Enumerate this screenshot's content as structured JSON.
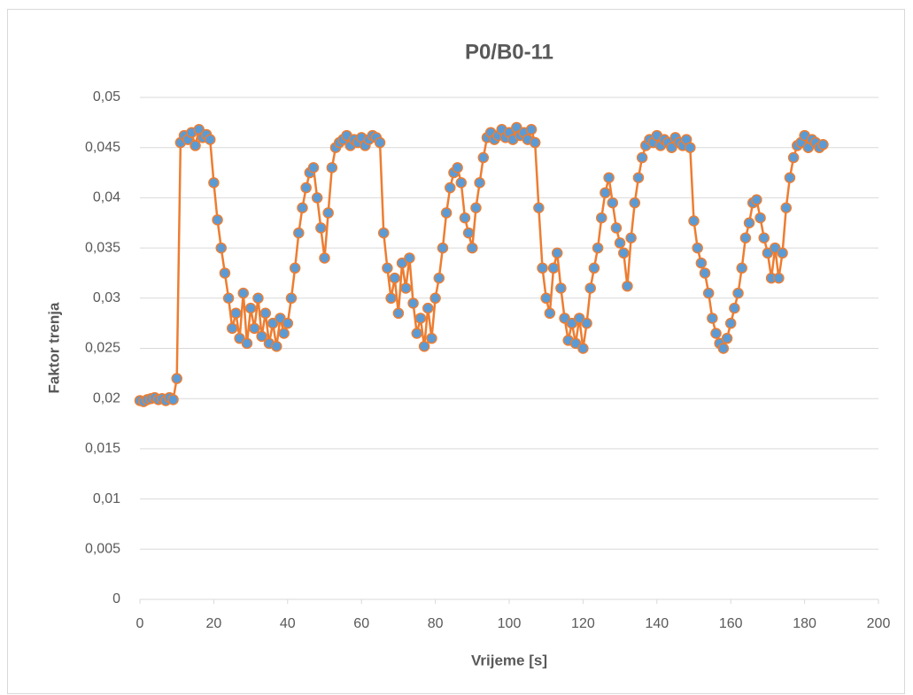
{
  "chart_data": {
    "type": "line",
    "title": "P0/B0-11",
    "x_label": "Vrijeme [s]",
    "y_label": "Faktor trenja",
    "color": "#ed7d31",
    "marker_color": "#5b9bd5",
    "grid": true,
    "xlim": [
      0,
      200
    ],
    "xticks": [
      0,
      20,
      40,
      60,
      80,
      100,
      120,
      140,
      160,
      180,
      200
    ],
    "ylim": [
      0,
      0.05
    ],
    "yticks": [
      0,
      {
        "value": 0.005,
        "label": "0,005"
      },
      {
        "value": 0.01,
        "label": "0,01"
      },
      {
        "value": 0.015,
        "label": "0,015"
      },
      {
        "value": 0.02,
        "label": "0,02"
      },
      {
        "value": 0.025,
        "label": "0,025"
      },
      {
        "value": 0.03,
        "label": "0,03"
      },
      {
        "value": 0.035,
        "label": "0,035"
      },
      {
        "value": 0.04,
        "label": "0,04"
      },
      {
        "value": 0.045,
        "label": "0,045"
      },
      {
        "value": 0.05,
        "label": "0,05"
      }
    ],
    "x": [
      0,
      1,
      2,
      3,
      4,
      5,
      6,
      7,
      8,
      9,
      10,
      11,
      12,
      13,
      14,
      15,
      16,
      17,
      18,
      19,
      20,
      21,
      22,
      23,
      24,
      25,
      26,
      27,
      28,
      29,
      30,
      31,
      32,
      33,
      34,
      35,
      36,
      37,
      38,
      39,
      40,
      41,
      42,
      43,
      44,
      45,
      46,
      47,
      48,
      49,
      50,
      51,
      52,
      53,
      54,
      55,
      56,
      57,
      58,
      59,
      60,
      61,
      62,
      63,
      64,
      65,
      66,
      67,
      68,
      69,
      70,
      71,
      72,
      73,
      74,
      75,
      76,
      77,
      78,
      79,
      80,
      81,
      82,
      83,
      84,
      85,
      86,
      87,
      88,
      89,
      90,
      91,
      92,
      93,
      94,
      95,
      96,
      97,
      98,
      99,
      100,
      101,
      102,
      103,
      104,
      105,
      106,
      107,
      108,
      109,
      110,
      111,
      112,
      113,
      114,
      115,
      116,
      117,
      118,
      119,
      120,
      121,
      122,
      123,
      124,
      125,
      126,
      127,
      128,
      129,
      130,
      131,
      132,
      133,
      134,
      135,
      136,
      137,
      138,
      139,
      140,
      141,
      142,
      143,
      144,
      145,
      146,
      147,
      148,
      149,
      150,
      151,
      152,
      153,
      154,
      155,
      156,
      157,
      158,
      159,
      160,
      161,
      162,
      163,
      164,
      165,
      166,
      167,
      168,
      169,
      170,
      171,
      172,
      173,
      174,
      175,
      176,
      177,
      178,
      179,
      180,
      181,
      182,
      183,
      184,
      185
    ],
    "values": [
      0.0198,
      0.0197,
      0.0199,
      0.02,
      0.0201,
      0.0199,
      0.02,
      0.0198,
      0.0201,
      0.0199,
      0.022,
      0.0455,
      0.0462,
      0.0458,
      0.0465,
      0.0452,
      0.0468,
      0.046,
      0.0463,
      0.0458,
      0.0415,
      0.0378,
      0.035,
      0.0325,
      0.03,
      0.027,
      0.0285,
      0.026,
      0.0305,
      0.0255,
      0.029,
      0.027,
      0.03,
      0.0262,
      0.0285,
      0.0255,
      0.0275,
      0.0252,
      0.028,
      0.0265,
      0.0275,
      0.03,
      0.033,
      0.0365,
      0.039,
      0.041,
      0.0425,
      0.043,
      0.04,
      0.037,
      0.034,
      0.0385,
      0.043,
      0.045,
      0.0455,
      0.0458,
      0.0462,
      0.0452,
      0.0458,
      0.0455,
      0.046,
      0.0452,
      0.0458,
      0.0462,
      0.046,
      0.0455,
      0.0365,
      0.033,
      0.03,
      0.032,
      0.0285,
      0.0335,
      0.031,
      0.034,
      0.0295,
      0.0265,
      0.028,
      0.0252,
      0.029,
      0.026,
      0.03,
      0.032,
      0.035,
      0.0385,
      0.041,
      0.0425,
      0.043,
      0.0415,
      0.038,
      0.0365,
      0.035,
      0.039,
      0.0415,
      0.044,
      0.046,
      0.0465,
      0.0458,
      0.0462,
      0.0468,
      0.046,
      0.0465,
      0.0458,
      0.047,
      0.0462,
      0.0465,
      0.0458,
      0.0468,
      0.0455,
      0.039,
      0.033,
      0.03,
      0.0285,
      0.033,
      0.0345,
      0.031,
      0.028,
      0.0258,
      0.0275,
      0.0255,
      0.028,
      0.025,
      0.0275,
      0.031,
      0.033,
      0.035,
      0.038,
      0.0405,
      0.042,
      0.0395,
      0.037,
      0.0355,
      0.0345,
      0.0312,
      0.036,
      0.0395,
      0.042,
      0.044,
      0.0452,
      0.0458,
      0.0455,
      0.0462,
      0.0452,
      0.0458,
      0.0455,
      0.045,
      0.046,
      0.0455,
      0.0452,
      0.0458,
      0.045,
      0.0377,
      0.035,
      0.0335,
      0.0325,
      0.0305,
      0.028,
      0.0265,
      0.0255,
      0.025,
      0.026,
      0.0275,
      0.029,
      0.0305,
      0.033,
      0.036,
      0.0375,
      0.0395,
      0.0398,
      0.038,
      0.036,
      0.0345,
      0.032,
      0.035,
      0.032,
      0.0345,
      0.039,
      0.042,
      0.044,
      0.0452,
      0.0455,
      0.0462,
      0.045,
      0.0458,
      0.0455,
      0.045,
      0.0453
    ]
  }
}
